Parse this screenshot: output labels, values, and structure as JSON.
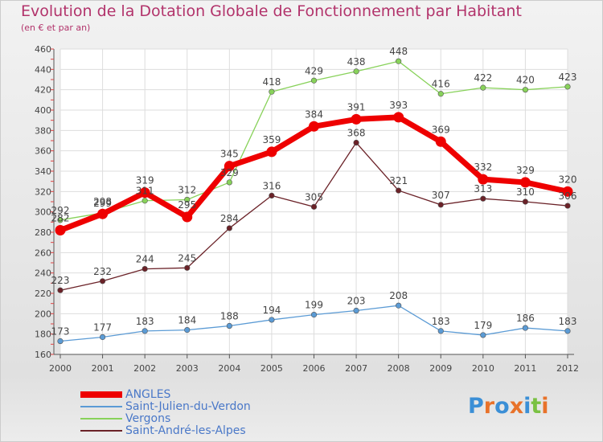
{
  "header": {
    "title": "Evolution de la Dotation Globale de Fonctionnement par Habitant",
    "subtitle": "(en € et par an)"
  },
  "logo": {
    "text": "Proxiti",
    "letters": [
      {
        "ch": "P",
        "color": "#3b8fd6"
      },
      {
        "ch": "r",
        "color": "#e8722a"
      },
      {
        "ch": "o",
        "color": "#3b8fd6"
      },
      {
        "ch": "x",
        "color": "#e8722a"
      },
      {
        "ch": "i",
        "color": "#3b8fd6"
      },
      {
        "ch": "t",
        "color": "#7ac143"
      },
      {
        "ch": "i",
        "color": "#e8722a"
      }
    ]
  },
  "chart_data": {
    "type": "line",
    "x": [
      "2000",
      "2001",
      "2002",
      "2003",
      "2004",
      "2005",
      "2006",
      "2007",
      "2008",
      "2009",
      "2010",
      "2011",
      "2012"
    ],
    "ylim": [
      160,
      460
    ],
    "yticks": [
      160,
      180,
      200,
      220,
      240,
      260,
      280,
      300,
      320,
      340,
      360,
      380,
      400,
      420,
      440,
      460
    ],
    "grid": true,
    "legend_position": "bottom-left",
    "series": [
      {
        "name": "Vergons",
        "color": "#88d25a",
        "values": [
          292,
          299,
          311,
          312,
          329,
          418,
          429,
          438,
          448,
          416,
          422,
          420,
          423
        ]
      },
      {
        "name": "Saint-André-les-Alpes",
        "color": "#6b2228",
        "values": [
          223,
          232,
          244,
          245,
          284,
          316,
          305,
          368,
          321,
          307,
          313,
          310,
          306
        ]
      },
      {
        "name": "Saint-Julien-du-Verdon",
        "color": "#5b9bd5",
        "values": [
          173,
          177,
          183,
          184,
          188,
          194,
          199,
          203,
          208,
          183,
          179,
          186,
          183
        ]
      },
      {
        "name": "ANGLES",
        "color": "#ee0000",
        "values": [
          282,
          298,
          319,
          295,
          345,
          359,
          384,
          391,
          393,
          369,
          332,
          329,
          320
        ]
      }
    ],
    "legend": [
      {
        "name": "ANGLES",
        "color": "#ee0000"
      },
      {
        "name": "Saint-Julien-du-Verdon",
        "color": "#5b9bd5"
      },
      {
        "name": "Vergons",
        "color": "#88d25a"
      },
      {
        "name": "Saint-André-les-Alpes",
        "color": "#6b2228"
      }
    ]
  }
}
